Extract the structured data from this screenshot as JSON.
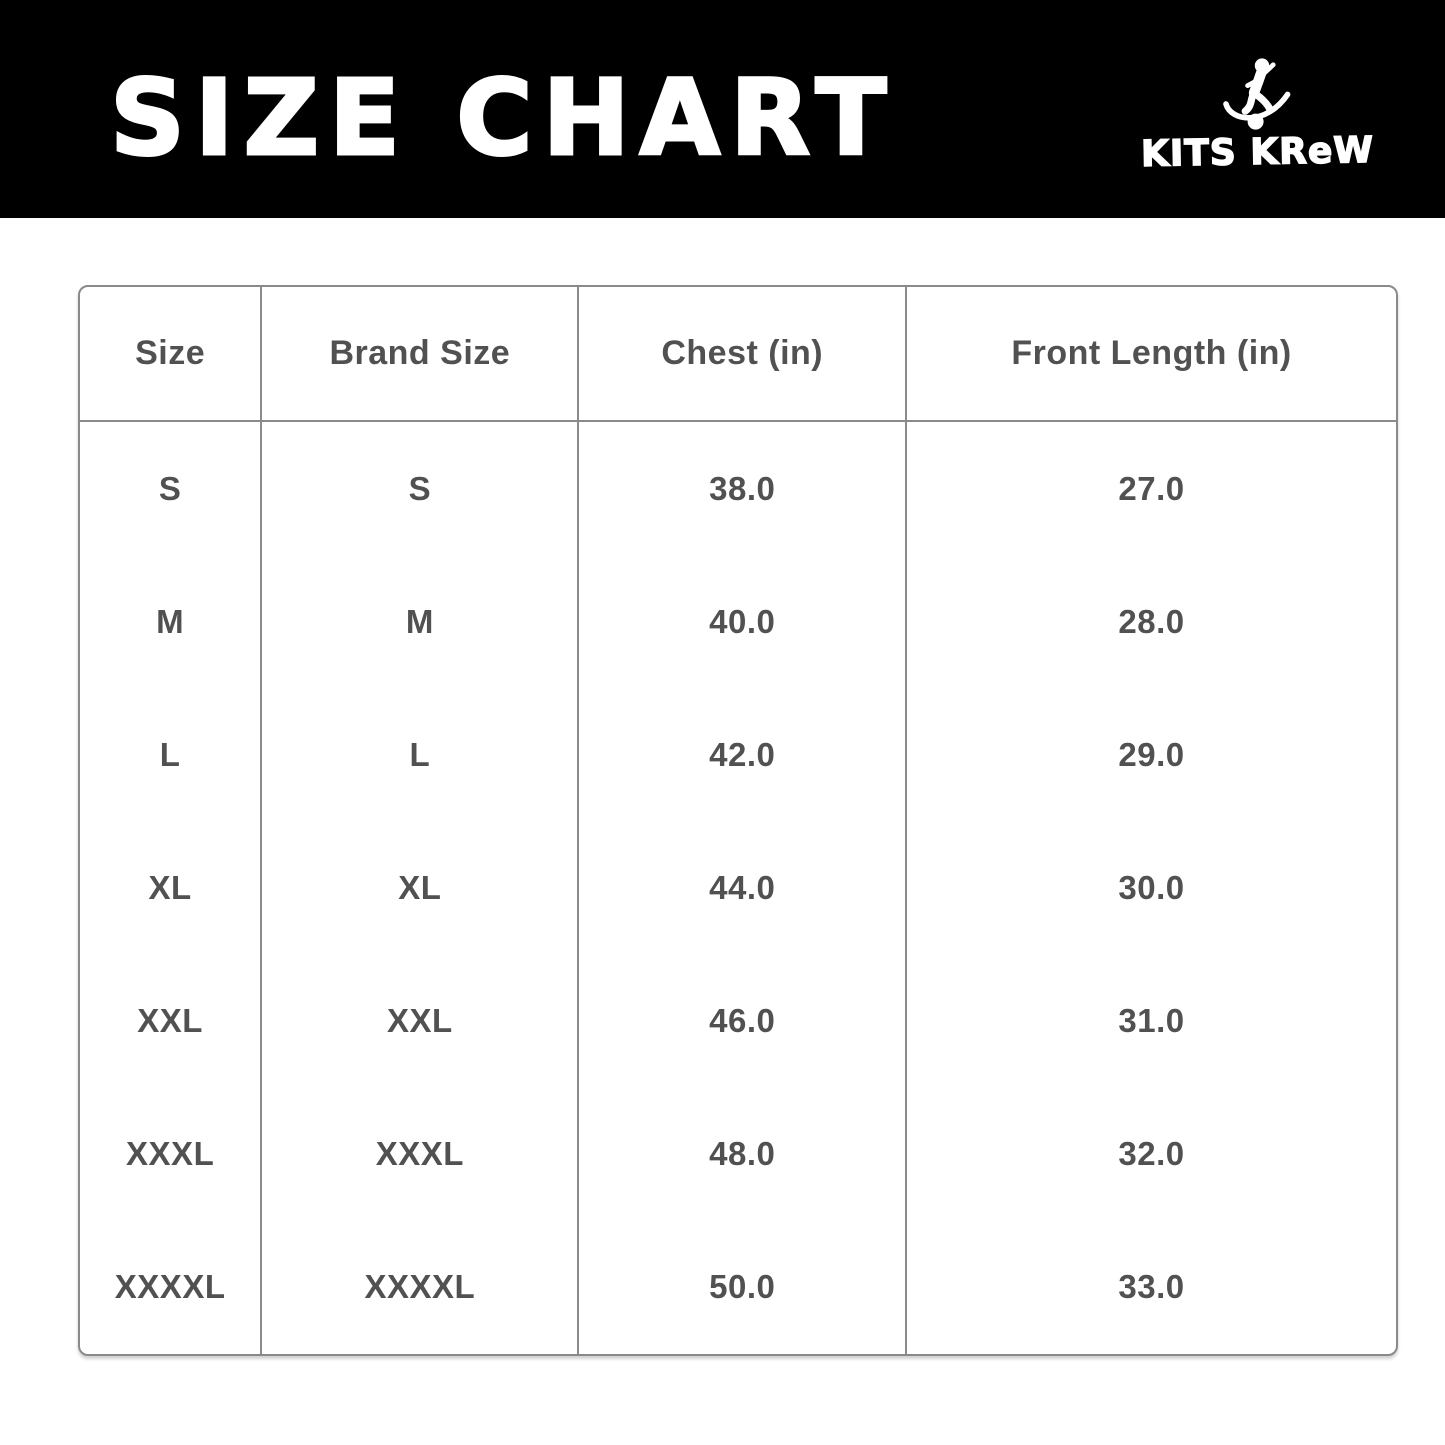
{
  "banner": {
    "title": "SIZE CHART",
    "brand": {
      "name": "KITS KReW",
      "icon": "soccer-player-kicking-ball-icon"
    },
    "colors": {
      "background": "#000000",
      "text": "#ffffff"
    }
  },
  "size_table": {
    "columns": [
      "Size",
      "Brand Size",
      "Chest (in)",
      "Front Length (in)"
    ],
    "rows": [
      [
        "S",
        "S",
        "38.0",
        "27.0"
      ],
      [
        "M",
        "M",
        "40.0",
        "28.0"
      ],
      [
        "L",
        "L",
        "42.0",
        "29.0"
      ],
      [
        "XL",
        "XL",
        "44.0",
        "30.0"
      ],
      [
        "XXL",
        "XXL",
        "46.0",
        "31.0"
      ],
      [
        "XXXL",
        "XXXL",
        "48.0",
        "32.0"
      ],
      [
        "XXXXL",
        "XXXXL",
        "50.0",
        "33.0"
      ]
    ],
    "colors": {
      "border": "#8a8a8a",
      "text": "#515151",
      "background": "#ffffff"
    }
  },
  "chart_data": {
    "type": "table",
    "title": "SIZE CHART",
    "columns": [
      "Size",
      "Brand Size",
      "Chest (in)",
      "Front Length (in)"
    ],
    "rows": [
      {
        "size": "S",
        "brand_size": "S",
        "chest_in": 38.0,
        "front_length_in": 27.0
      },
      {
        "size": "M",
        "brand_size": "M",
        "chest_in": 40.0,
        "front_length_in": 28.0
      },
      {
        "size": "L",
        "brand_size": "L",
        "chest_in": 42.0,
        "front_length_in": 29.0
      },
      {
        "size": "XL",
        "brand_size": "XL",
        "chest_in": 44.0,
        "front_length_in": 30.0
      },
      {
        "size": "XXL",
        "brand_size": "XXL",
        "chest_in": 46.0,
        "front_length_in": 31.0
      },
      {
        "size": "XXXL",
        "brand_size": "XXXL",
        "chest_in": 48.0,
        "front_length_in": 32.0
      },
      {
        "size": "XXXXL",
        "brand_size": "XXXXL",
        "chest_in": 50.0,
        "front_length_in": 33.0
      }
    ]
  }
}
